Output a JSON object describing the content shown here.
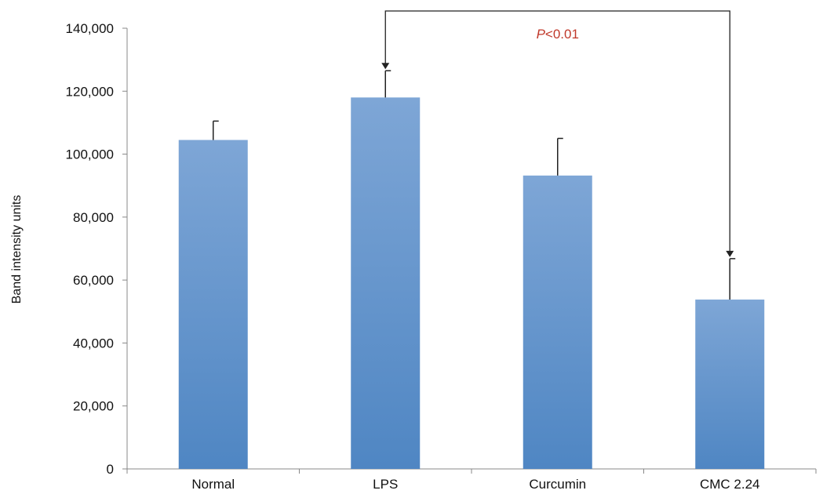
{
  "chart_data": {
    "type": "bar",
    "categories": [
      "Normal",
      "LPS",
      "Curcumin",
      "CMC 2.24"
    ],
    "values": [
      104500,
      118000,
      93200,
      53800
    ],
    "error_upper": [
      6000,
      8500,
      11800,
      13000
    ],
    "ylabel": "Band intensity units",
    "ylim": [
      0,
      140000
    ],
    "yticks": [
      0,
      20000,
      40000,
      60000,
      80000,
      100000,
      120000,
      140000
    ],
    "ytick_labels": [
      "0",
      "20,000",
      "40,000",
      "60,000",
      "80,000",
      "100,000",
      "120,000",
      "140,000"
    ],
    "grid": false,
    "bar_color_top": "#7ea6d6",
    "bar_color_bottom": "#4f86c3",
    "annotation": {
      "prefix": "P",
      "suffix": "<0.01",
      "color": "#c0392b",
      "from_category": "LPS",
      "to_category": "CMC 2.24"
    }
  }
}
